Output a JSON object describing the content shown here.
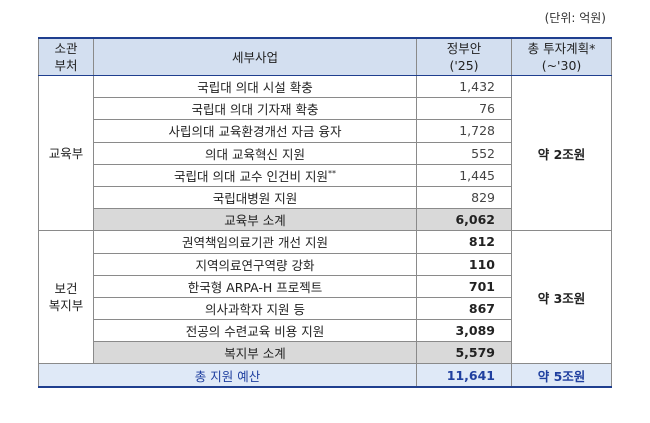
{
  "unit": "(단위: 억원)",
  "header": {
    "dept_line1": "소관",
    "dept_line2": "부처",
    "program": "세부사업",
    "gov_line1": "정부안",
    "gov_line2": "('25)",
    "invest_line1": "총 투자계획*",
    "invest_line2": "(~'30)"
  },
  "groups": [
    {
      "dept_line1": "교육부",
      "dept_line2": "",
      "invest": "약 2조원",
      "items": [
        {
          "name": "국립대 의대 시설 확충",
          "amount": "1,432",
          "mark": ""
        },
        {
          "name": "국립대 의대 기자재 확충",
          "amount": "76",
          "mark": ""
        },
        {
          "name": "사립의대 교육환경개선 자금 융자",
          "amount": "1,728",
          "mark": ""
        },
        {
          "name": "의대 교육혁신 지원",
          "amount": "552",
          "mark": ""
        },
        {
          "name": "국립대 의대 교수 인건비 지원",
          "amount": "1,445",
          "mark": "**"
        },
        {
          "name": "국립대병원 지원",
          "amount": "829",
          "mark": ""
        }
      ],
      "subtotal": {
        "name": "교육부 소계",
        "amount": "6,062"
      }
    },
    {
      "dept_line1": "보건",
      "dept_line2": "복지부",
      "invest": "약 3조원",
      "items": [
        {
          "name": "권역책임의료기관 개선 지원",
          "amount": "812",
          "mark": ""
        },
        {
          "name": "지역의료연구역량 강화",
          "amount": "110",
          "mark": ""
        },
        {
          "name": "한국형 ARPA-H 프로젝트",
          "amount": "701",
          "mark": ""
        },
        {
          "name": "의사과학자 지원 등",
          "amount": "867",
          "mark": ""
        },
        {
          "name": "전공의 수련교육 비용 지원",
          "amount": "3,089",
          "mark": ""
        }
      ],
      "subtotal": {
        "name": "복지부 소계",
        "amount": "5,579"
      }
    }
  ],
  "total": {
    "name": "총 지원 예산",
    "amount": "11,641",
    "invest": "약 5조원"
  },
  "colors": {
    "header_bg": "#d3dff0",
    "subtotal_bg": "#d9d9d9",
    "total_bg": "#dfe9f7",
    "accent": "#1f3f9f"
  }
}
